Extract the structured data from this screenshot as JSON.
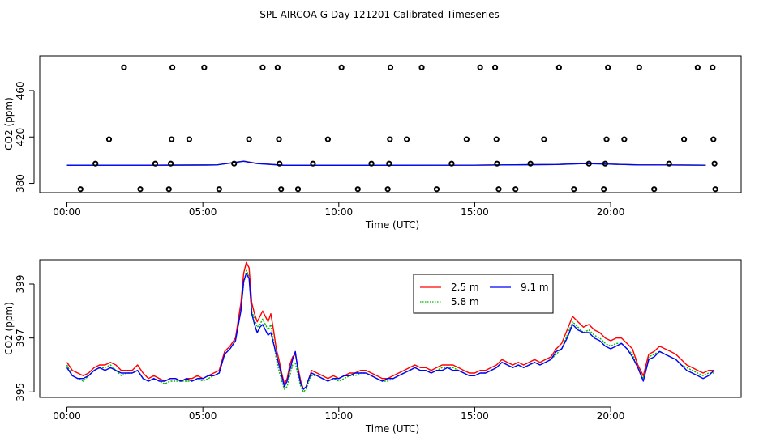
{
  "chart_data": [
    {
      "type": "scatter",
      "title": "SPL AIRCOA G  Day 121201  Calibrated Timeseries",
      "xlabel": "Time (UTC)",
      "ylabel": "CO2 (ppm)",
      "xlim": [
        -1.0,
        24.8
      ],
      "ylim": [
        372,
        490
      ],
      "xticks": [
        0,
        5,
        10,
        15,
        20
      ],
      "xtick_labels": [
        "00:00",
        "05:00",
        "10:00",
        "15:00",
        "20:00"
      ],
      "yticks": [
        380,
        420,
        460
      ],
      "ytick_labels": [
        "380",
        "420",
        "460"
      ],
      "colors": {
        "2.5 m": "#ff0000",
        "5.8 m": "#00bb00",
        "9.1 m": "#0000ff",
        "points": "#000000"
      },
      "points": [
        {
          "x": 0.5,
          "y": 375
        },
        {
          "x": 1.05,
          "y": 397
        },
        {
          "x": 1.55,
          "y": 418
        },
        {
          "x": 2.1,
          "y": 480
        },
        {
          "x": 2.7,
          "y": 375
        },
        {
          "x": 3.25,
          "y": 397
        },
        {
          "x": 3.75,
          "y": 375
        },
        {
          "x": 3.82,
          "y": 397
        },
        {
          "x": 3.85,
          "y": 418
        },
        {
          "x": 3.88,
          "y": 480
        },
        {
          "x": 4.5,
          "y": 418
        },
        {
          "x": 5.05,
          "y": 480
        },
        {
          "x": 5.6,
          "y": 375
        },
        {
          "x": 6.15,
          "y": 397
        },
        {
          "x": 6.7,
          "y": 418
        },
        {
          "x": 7.2,
          "y": 480
        },
        {
          "x": 7.75,
          "y": 480
        },
        {
          "x": 7.8,
          "y": 418
        },
        {
          "x": 7.82,
          "y": 397
        },
        {
          "x": 7.88,
          "y": 375
        },
        {
          "x": 8.5,
          "y": 375
        },
        {
          "x": 9.05,
          "y": 397
        },
        {
          "x": 9.6,
          "y": 418
        },
        {
          "x": 10.1,
          "y": 480
        },
        {
          "x": 10.7,
          "y": 375
        },
        {
          "x": 11.2,
          "y": 397
        },
        {
          "x": 11.8,
          "y": 375
        },
        {
          "x": 11.85,
          "y": 397
        },
        {
          "x": 11.88,
          "y": 418
        },
        {
          "x": 11.9,
          "y": 480
        },
        {
          "x": 12.5,
          "y": 418
        },
        {
          "x": 13.05,
          "y": 480
        },
        {
          "x": 13.6,
          "y": 375
        },
        {
          "x": 14.15,
          "y": 397
        },
        {
          "x": 14.7,
          "y": 418
        },
        {
          "x": 15.2,
          "y": 480
        },
        {
          "x": 15.75,
          "y": 480
        },
        {
          "x": 15.8,
          "y": 418
        },
        {
          "x": 15.82,
          "y": 397
        },
        {
          "x": 15.88,
          "y": 375
        },
        {
          "x": 16.5,
          "y": 375
        },
        {
          "x": 17.05,
          "y": 397
        },
        {
          "x": 17.55,
          "y": 418
        },
        {
          "x": 18.1,
          "y": 480
        },
        {
          "x": 18.65,
          "y": 375
        },
        {
          "x": 19.2,
          "y": 397
        },
        {
          "x": 19.75,
          "y": 375
        },
        {
          "x": 19.8,
          "y": 397
        },
        {
          "x": 19.85,
          "y": 418
        },
        {
          "x": 19.9,
          "y": 480
        },
        {
          "x": 20.5,
          "y": 418
        },
        {
          "x": 21.05,
          "y": 480
        },
        {
          "x": 21.6,
          "y": 375
        },
        {
          "x": 22.15,
          "y": 397
        },
        {
          "x": 22.7,
          "y": 418
        },
        {
          "x": 23.2,
          "y": 480
        },
        {
          "x": 23.75,
          "y": 480
        },
        {
          "x": 23.78,
          "y": 418
        },
        {
          "x": 23.82,
          "y": 397
        },
        {
          "x": 23.85,
          "y": 375
        }
      ],
      "series": [
        {
          "name": "2.5 m",
          "x": [
            0,
            3,
            5.5,
            6.5,
            7,
            8,
            10,
            15,
            18,
            19,
            20,
            21,
            22,
            23.5
          ],
          "values": [
            395.6,
            395.6,
            395.8,
            399.2,
            397.2,
            395.6,
            395.5,
            395.7,
            396.2,
            397.2,
            396.6,
            396.0,
            395.9,
            395.7
          ]
        },
        {
          "name": "5.8 m",
          "x": [
            0,
            3,
            5.5,
            6.5,
            7,
            8,
            10,
            15,
            18,
            19,
            20,
            21,
            22,
            23.5
          ],
          "values": [
            395.6,
            395.6,
            395.8,
            399.1,
            397.1,
            395.5,
            395.5,
            395.7,
            396.2,
            397.1,
            396.5,
            395.9,
            395.8,
            395.6
          ]
        },
        {
          "name": "9.1 m",
          "x": [
            0,
            3,
            5.5,
            6.5,
            7,
            8,
            10,
            15,
            18,
            19,
            20,
            21,
            22,
            23.5
          ],
          "values": [
            395.6,
            395.6,
            395.8,
            399.0,
            397.0,
            395.5,
            395.5,
            395.7,
            396.2,
            397.0,
            396.5,
            395.9,
            395.8,
            395.7
          ]
        }
      ]
    },
    {
      "type": "line",
      "xlabel": "Time (UTC)",
      "ylabel": "CO2 (ppm)",
      "xlim": [
        -1.0,
        24.8
      ],
      "ylim": [
        394.8,
        399.9
      ],
      "xticks": [
        0,
        5,
        10,
        15,
        20
      ],
      "xtick_labels": [
        "00:00",
        "05:00",
        "10:00",
        "15:00",
        "20:00"
      ],
      "yticks": [
        395,
        397,
        399
      ],
      "ytick_labels": [
        "395",
        "397",
        "399"
      ],
      "legend": {
        "position": "top-center",
        "entries": [
          "2.5 m",
          "9.1 m",
          "5.8 m"
        ]
      },
      "colors": {
        "2.5 m": "#ff0000",
        "5.8 m": "#00bb00",
        "9.1 m": "#0000ff"
      },
      "x": [
        0.0,
        0.2,
        0.4,
        0.6,
        0.8,
        1.0,
        1.2,
        1.4,
        1.6,
        1.8,
        2.0,
        2.2,
        2.4,
        2.6,
        2.8,
        3.0,
        3.2,
        3.4,
        3.6,
        3.8,
        4.0,
        4.2,
        4.4,
        4.6,
        4.8,
        5.0,
        5.2,
        5.4,
        5.6,
        5.8,
        6.0,
        6.2,
        6.4,
        6.5,
        6.6,
        6.7,
        6.8,
        6.9,
        7.0,
        7.1,
        7.2,
        7.3,
        7.4,
        7.5,
        7.6,
        7.7,
        7.8,
        7.9,
        8.0,
        8.1,
        8.2,
        8.3,
        8.4,
        8.5,
        8.6,
        8.7,
        8.8,
        8.9,
        9.0,
        9.2,
        9.4,
        9.6,
        9.8,
        10.0,
        10.2,
        10.4,
        10.6,
        10.8,
        11.0,
        11.2,
        11.4,
        11.6,
        11.8,
        12.0,
        12.2,
        12.4,
        12.6,
        12.8,
        13.0,
        13.2,
        13.4,
        13.6,
        13.8,
        14.0,
        14.2,
        14.4,
        14.6,
        14.8,
        15.0,
        15.2,
        15.4,
        15.6,
        15.8,
        16.0,
        16.2,
        16.4,
        16.6,
        16.8,
        17.0,
        17.2,
        17.4,
        17.6,
        17.8,
        18.0,
        18.2,
        18.4,
        18.6,
        18.8,
        19.0,
        19.2,
        19.4,
        19.6,
        19.8,
        20.0,
        20.2,
        20.4,
        20.6,
        20.8,
        21.0,
        21.2,
        21.4,
        21.6,
        21.8,
        22.0,
        22.2,
        22.4,
        22.6,
        22.8,
        23.0,
        23.2,
        23.4,
        23.6,
        23.8
      ],
      "series": [
        {
          "name": "2.5 m",
          "values": [
            396.1,
            395.8,
            395.7,
            395.6,
            395.7,
            395.9,
            396.0,
            396.0,
            396.1,
            396.0,
            395.8,
            395.8,
            395.8,
            396.0,
            395.7,
            395.5,
            395.6,
            395.5,
            395.4,
            395.5,
            395.5,
            395.4,
            395.5,
            395.5,
            395.6,
            395.5,
            395.6,
            395.7,
            395.8,
            396.5,
            396.7,
            397.0,
            398.3,
            399.4,
            399.8,
            399.6,
            398.3,
            397.9,
            397.6,
            397.8,
            398.0,
            397.8,
            397.6,
            397.9,
            397.3,
            396.6,
            396.2,
            395.7,
            395.3,
            395.5,
            396.0,
            396.3,
            396.4,
            395.9,
            395.4,
            395.1,
            395.2,
            395.5,
            395.8,
            395.7,
            395.6,
            395.5,
            395.6,
            395.5,
            395.6,
            395.7,
            395.7,
            395.8,
            395.8,
            395.7,
            395.6,
            395.5,
            395.5,
            395.6,
            395.7,
            395.8,
            395.9,
            396.0,
            395.9,
            395.9,
            395.8,
            395.9,
            396.0,
            396.0,
            396.0,
            395.9,
            395.8,
            395.7,
            395.7,
            395.8,
            395.8,
            395.9,
            396.0,
            396.2,
            396.1,
            396.0,
            396.1,
            396.0,
            396.1,
            396.2,
            396.1,
            396.2,
            396.3,
            396.6,
            396.8,
            397.3,
            397.8,
            397.6,
            397.4,
            397.5,
            397.3,
            397.2,
            397.0,
            396.9,
            397.0,
            397.0,
            396.8,
            396.6,
            396.0,
            395.6,
            396.4,
            396.5,
            396.7,
            396.6,
            396.5,
            396.4,
            396.2,
            396.0,
            395.9,
            395.8,
            395.7,
            395.8,
            395.8
          ]
        },
        {
          "name": "5.8 m",
          "values": [
            396.0,
            395.6,
            395.5,
            395.4,
            395.6,
            395.8,
            395.9,
            395.9,
            396.0,
            395.8,
            395.6,
            395.7,
            395.7,
            395.8,
            395.5,
            395.4,
            395.5,
            395.4,
            395.3,
            395.4,
            395.4,
            395.4,
            395.4,
            395.4,
            395.5,
            395.4,
            395.5,
            395.6,
            395.7,
            396.4,
            396.6,
            396.9,
            398.1,
            399.0,
            399.5,
            399.3,
            398.0,
            397.7,
            397.4,
            397.5,
            397.7,
            397.5,
            397.3,
            397.5,
            396.9,
            396.2,
            395.8,
            395.4,
            395.1,
            395.2,
            395.6,
            396.0,
            396.1,
            395.6,
            395.2,
            395.0,
            395.1,
            395.4,
            395.6,
            395.6,
            395.5,
            395.4,
            395.5,
            395.4,
            395.5,
            395.6,
            395.6,
            395.7,
            395.7,
            395.6,
            395.5,
            395.4,
            395.4,
            395.5,
            395.6,
            395.7,
            395.8,
            395.9,
            395.8,
            395.8,
            395.7,
            395.8,
            395.9,
            395.9,
            395.9,
            395.8,
            395.7,
            395.6,
            395.6,
            395.7,
            395.7,
            395.8,
            395.9,
            396.1,
            396.0,
            395.9,
            396.0,
            395.9,
            396.0,
            396.1,
            396.0,
            396.1,
            396.2,
            396.4,
            396.6,
            397.1,
            397.6,
            397.4,
            397.2,
            397.3,
            397.1,
            397.0,
            396.8,
            396.7,
            396.8,
            396.8,
            396.6,
            396.4,
            395.9,
            395.5,
            396.3,
            396.4,
            396.5,
            396.4,
            396.3,
            396.2,
            396.0,
            395.9,
            395.8,
            395.7,
            395.6,
            395.7,
            395.7
          ]
        },
        {
          "name": "9.1 m",
          "values": [
            395.9,
            395.6,
            395.5,
            395.5,
            395.6,
            395.8,
            395.9,
            395.8,
            395.9,
            395.8,
            395.7,
            395.7,
            395.7,
            395.8,
            395.5,
            395.4,
            395.5,
            395.4,
            395.4,
            395.5,
            395.5,
            395.4,
            395.5,
            395.4,
            395.5,
            395.5,
            395.6,
            395.6,
            395.7,
            396.4,
            396.6,
            396.9,
            398.0,
            399.1,
            399.4,
            399.2,
            397.9,
            397.5,
            397.2,
            397.4,
            397.5,
            397.3,
            397.1,
            397.2,
            396.8,
            396.4,
            396.0,
            395.6,
            395.2,
            395.4,
            395.8,
            396.2,
            396.5,
            395.8,
            395.3,
            395.1,
            395.2,
            395.5,
            395.7,
            395.6,
            395.5,
            395.4,
            395.5,
            395.5,
            395.6,
            395.6,
            395.7,
            395.7,
            395.7,
            395.6,
            395.5,
            395.4,
            395.5,
            395.5,
            395.6,
            395.7,
            395.8,
            395.9,
            395.8,
            395.8,
            395.7,
            395.8,
            395.8,
            395.9,
            395.8,
            395.8,
            395.7,
            395.6,
            395.6,
            395.7,
            395.7,
            395.8,
            395.9,
            396.1,
            396.0,
            395.9,
            396.0,
            395.9,
            396.0,
            396.1,
            396.0,
            396.1,
            396.2,
            396.5,
            396.6,
            397.0,
            397.5,
            397.3,
            397.2,
            397.2,
            397.0,
            396.9,
            396.7,
            396.6,
            396.7,
            396.8,
            396.6,
            396.3,
            395.9,
            395.4,
            396.2,
            396.3,
            396.5,
            396.4,
            396.3,
            396.2,
            396.0,
            395.8,
            395.7,
            395.6,
            395.5,
            395.6,
            395.8
          ]
        }
      ]
    }
  ]
}
